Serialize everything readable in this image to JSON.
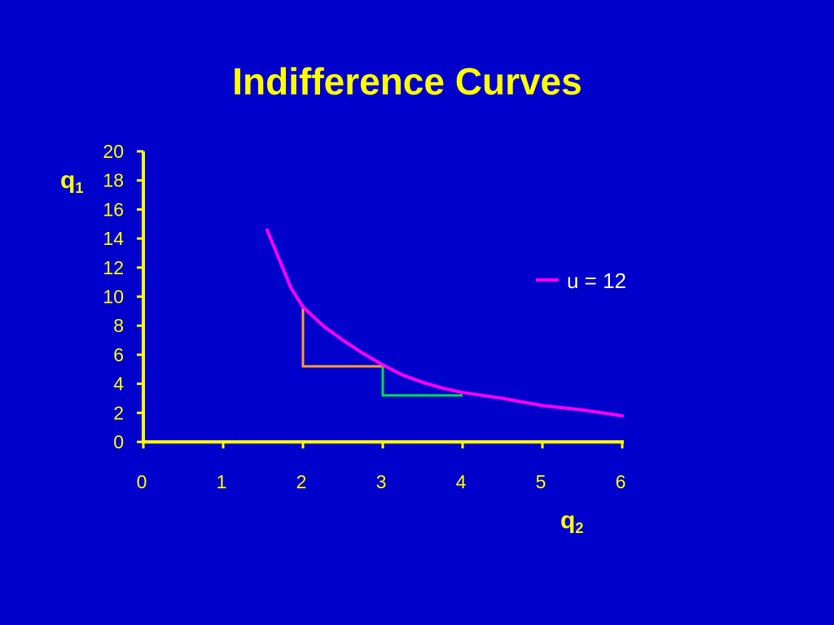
{
  "chart_data": {
    "type": "line",
    "title": "Indifference Curves",
    "xlabel": {
      "main": "q",
      "sub": "2"
    },
    "ylabel": {
      "main": "q",
      "sub": "1"
    },
    "xlim": [
      0,
      6
    ],
    "ylim": [
      0,
      20
    ],
    "xticks": [
      "0",
      "1",
      "2",
      "3",
      "4",
      "5",
      "6"
    ],
    "yticks": [
      "0",
      "2",
      "4",
      "6",
      "8",
      "10",
      "12",
      "14",
      "16",
      "18",
      "20"
    ],
    "grid": false,
    "legend_position": "right",
    "series": [
      {
        "name": "u = 12",
        "color": "#ff00ff",
        "x": [
          1.55,
          1.7,
          1.85,
          2.0,
          2.25,
          2.5,
          2.75,
          3.0,
          3.25,
          3.5,
          3.75,
          4.0,
          4.5,
          5.0,
          5.5,
          6.0
        ],
        "y": [
          14.6,
          12.6,
          10.6,
          9.3,
          8.0,
          7.0,
          6.1,
          5.3,
          4.6,
          4.1,
          3.7,
          3.4,
          3.0,
          2.5,
          2.2,
          1.8
        ]
      }
    ],
    "annotations": [
      {
        "type": "step",
        "color": "#ff9933",
        "x": [
          2.0,
          2.0,
          3.0
        ],
        "y": [
          9.3,
          5.2,
          5.2
        ]
      },
      {
        "type": "step",
        "color": "#00dd44",
        "x": [
          3.0,
          3.0,
          4.0
        ],
        "y": [
          5.2,
          3.2,
          3.2
        ]
      }
    ],
    "colors": {
      "background": "#0000cc",
      "axis": "#ffff00",
      "text": "#ffff00",
      "legend_text": "#ffffff"
    }
  }
}
